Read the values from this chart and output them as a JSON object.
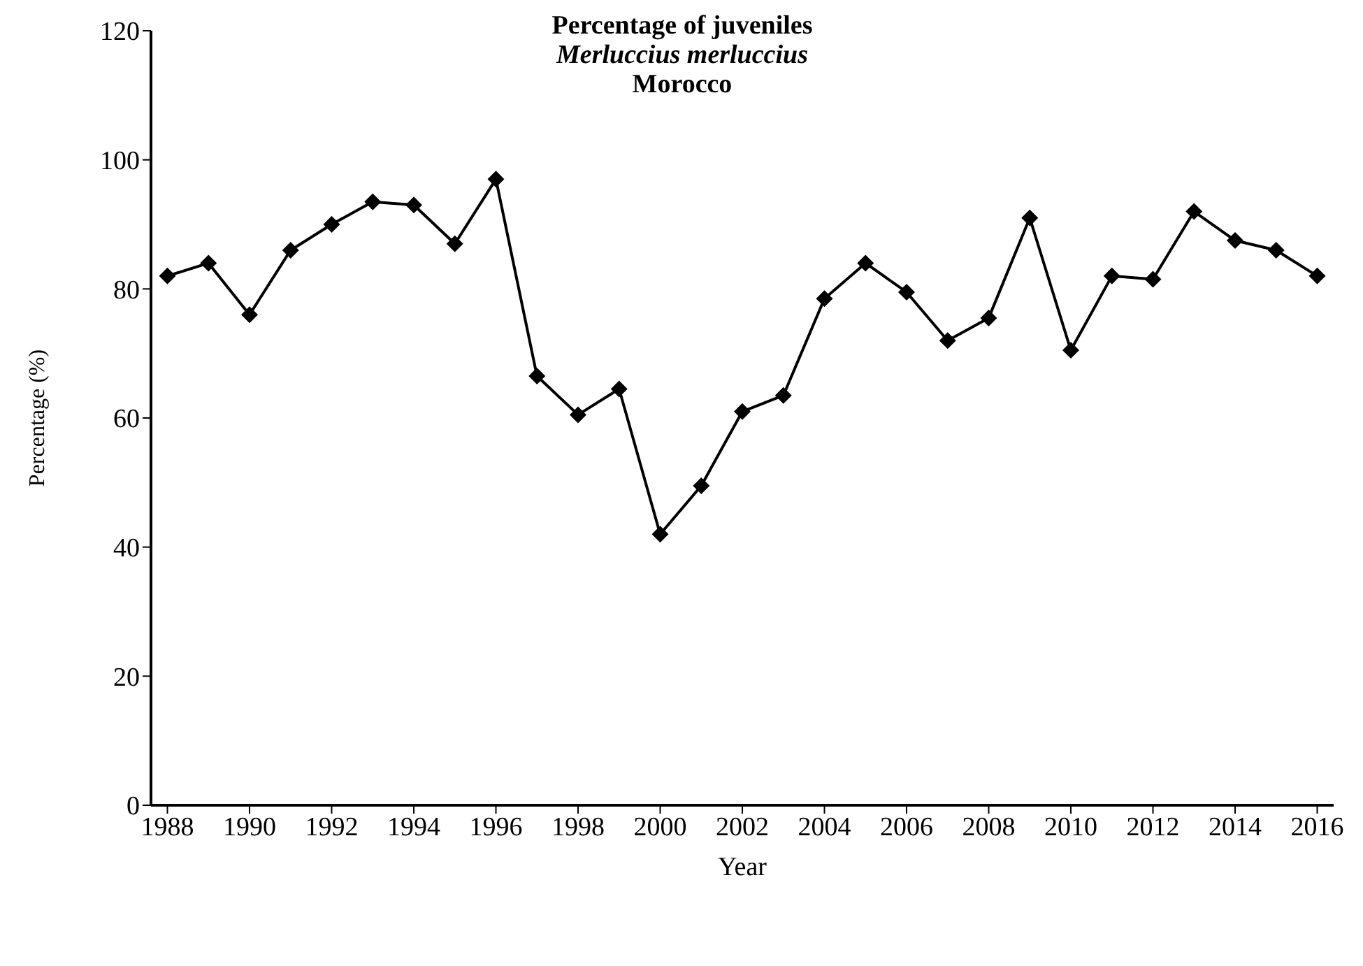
{
  "chart_data": {
    "type": "line",
    "title": "Percentage of juveniles",
    "subtitle": "Merluccius merluccius\nMorocco",
    "xlabel": "Year",
    "ylabel": "Percentage (%)",
    "x": [
      1988,
      1989,
      1990,
      1991,
      1992,
      1993,
      1994,
      1995,
      1996,
      1997,
      1998,
      1999,
      2000,
      2001,
      2002,
      2003,
      2004,
      2005,
      2006,
      2007,
      2008,
      2009,
      2010,
      2011,
      2012,
      2013,
      2014,
      2015,
      2016
    ],
    "series": [
      {
        "color": "#000000",
        "values": [
          82,
          84,
          76,
          86,
          90,
          93.5,
          93,
          87,
          97,
          66.5,
          60.5,
          64.5,
          42,
          49.5,
          61,
          63.5,
          78.5,
          84,
          79.5,
          72,
          75.5,
          91,
          70.5,
          82,
          81.5,
          92,
          87.5,
          86,
          82
        ]
      }
    ],
    "xlim": [
      1987.6,
      2016.4
    ],
    "xticks": [
      1988,
      1990,
      1992,
      1994,
      1996,
      1998,
      2000,
      2002,
      2004,
      2006,
      2008,
      2010,
      2012,
      2014,
      2016
    ],
    "ylim": [
      0,
      120
    ],
    "yticks": [
      0,
      20,
      40,
      60,
      80,
      100,
      120
    ],
    "grid": false,
    "legend": false,
    "marker": "diamond",
    "line_style": "solid"
  }
}
